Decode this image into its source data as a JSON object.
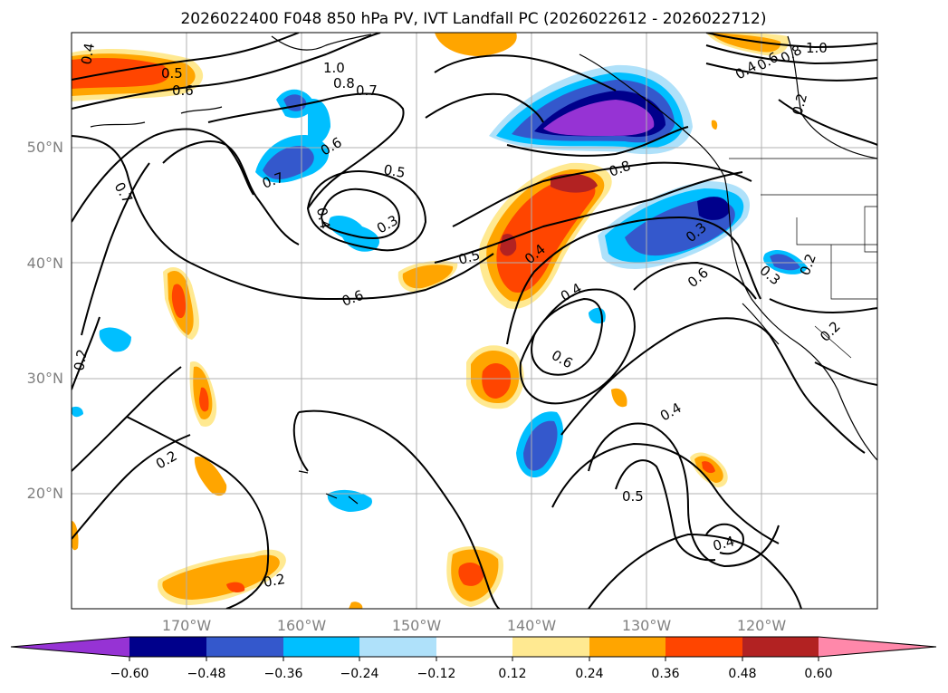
{
  "title": "2026022400 F048 850 hPa PV, IVT Landfall PC (2026022612 - 2026022712)",
  "map": {
    "lon_range": [
      -180,
      -110
    ],
    "lat_range": [
      10,
      60
    ],
    "lat_ticks": [
      {
        "value": 50,
        "label": "50°N"
      },
      {
        "value": 40,
        "label": "40°N"
      },
      {
        "value": 30,
        "label": "30°N"
      },
      {
        "value": 20,
        "label": "20°N"
      }
    ],
    "lon_ticks": [
      {
        "value": -170,
        "label": "170°W"
      },
      {
        "value": -160,
        "label": "160°W"
      },
      {
        "value": -150,
        "label": "150°W"
      },
      {
        "value": -140,
        "label": "140°W"
      },
      {
        "value": -130,
        "label": "130°W"
      },
      {
        "value": -120,
        "label": "120°W"
      }
    ],
    "grid": true,
    "contour_labels": [
      "0.4",
      "0.5",
      "0.6",
      "1.0",
      "0.8",
      "0.7",
      "0.6",
      "0.7",
      "0.7",
      "0.5",
      "0.4",
      "0.3",
      "0.6",
      "0.5",
      "0.4",
      "0.8",
      "0.4",
      "0.6",
      "0.3",
      "0.6",
      "0.3",
      "0.2",
      "0.2",
      "0.2",
      "0.2",
      "0.4",
      "0.5",
      "0.4",
      "0.2",
      "1.0",
      "0.8",
      "0.6",
      "0.4",
      "0.2"
    ]
  },
  "colorbar": {
    "colors": [
      "#9633d4",
      "#00008b",
      "#3458cc",
      "#00bfff",
      "#afe1fa",
      "#ffffff",
      "#ffe991",
      "#ffa500",
      "#ff4500",
      "#b22222",
      "#ff88aa"
    ],
    "ticks": [
      "−0.60",
      "−0.48",
      "−0.36",
      "−0.24",
      "−0.12",
      "0.12",
      "0.24",
      "0.36",
      "0.48",
      "0.60"
    ]
  }
}
